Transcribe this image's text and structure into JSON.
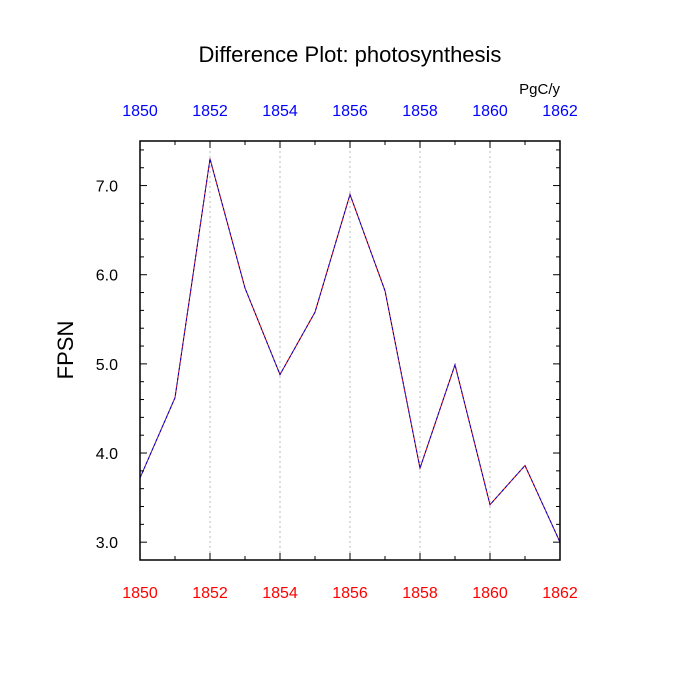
{
  "chart_data": {
    "type": "line",
    "title": "Difference Plot: photosynthesis",
    "units": "PgC/y",
    "ylabel": "FPSN",
    "xlabel": "",
    "xlim": [
      1850,
      1862
    ],
    "ylim": [
      2.8,
      7.5
    ],
    "x": [
      1850,
      1851,
      1852,
      1853,
      1854,
      1855,
      1856,
      1857,
      1858,
      1859,
      1860,
      1861,
      1862
    ],
    "series": [
      {
        "name": "FPSN",
        "color": "#8800aa",
        "values": [
          3.72,
          4.62,
          7.3,
          5.85,
          4.88,
          5.58,
          6.9,
          5.82,
          3.83,
          4.99,
          3.42,
          3.86,
          3.0
        ]
      }
    ],
    "x_ticks_bottom": [
      "1850",
      "1852",
      "1854",
      "1856",
      "1858",
      "1860",
      "1862"
    ],
    "x_ticks_top": [
      "1850",
      "1852",
      "1854",
      "1856",
      "1858",
      "1860",
      "1862"
    ],
    "y_ticks": [
      "3.0",
      "4.0",
      "5.0",
      "6.0",
      "7.0"
    ],
    "bottom_axis_color": "#ff0000",
    "top_axis_color": "#0000ff",
    "grid": "vertical dotted"
  }
}
